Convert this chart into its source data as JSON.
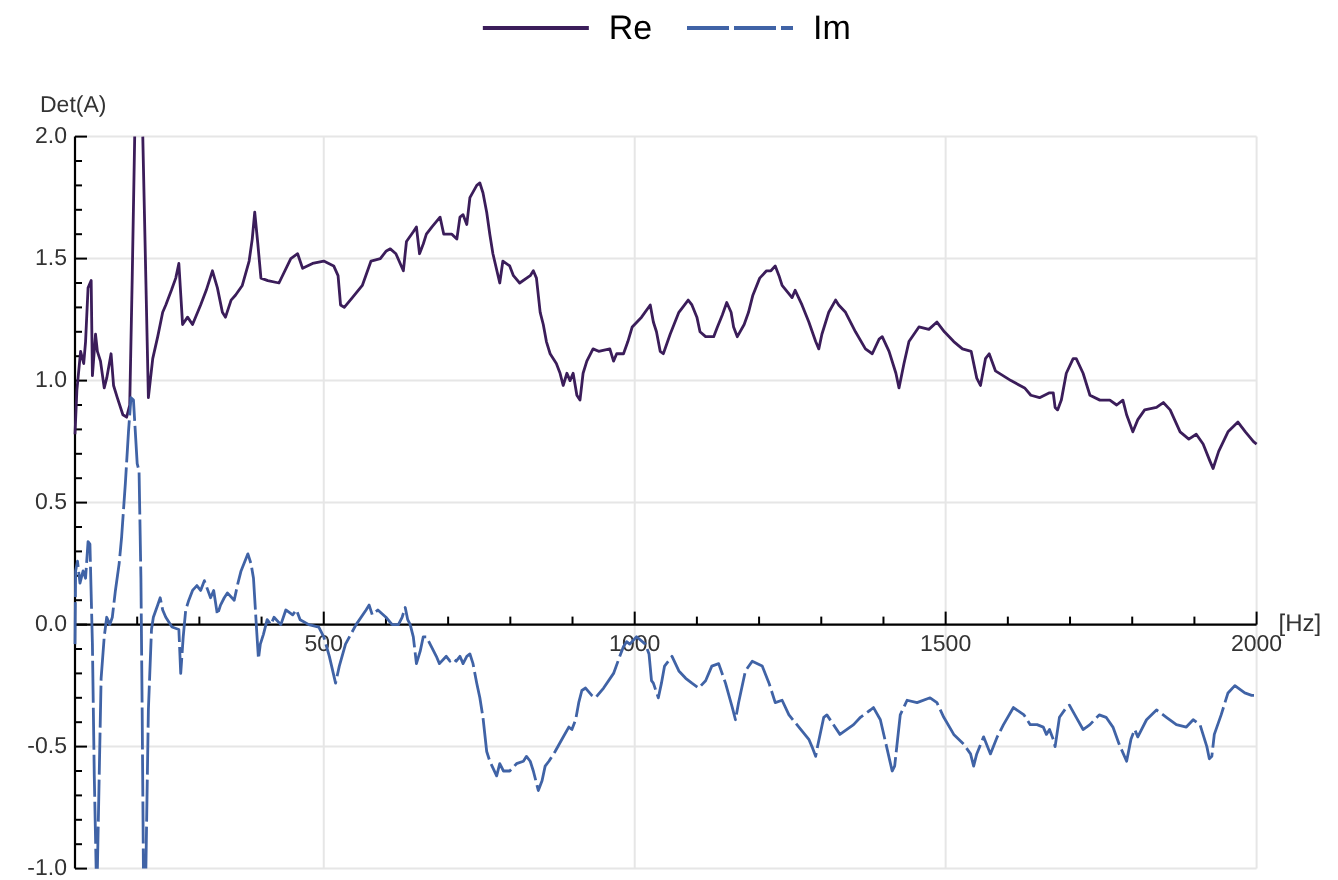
{
  "chart_data": {
    "type": "line",
    "xlabel": "[Hz]",
    "ylabel": "Det(A)",
    "xlim": [
      100,
      2000
    ],
    "ylim": [
      -1,
      2
    ],
    "xticks": [
      {
        "value": 200,
        "label": null
      },
      {
        "value": 300,
        "label": null
      },
      {
        "value": 400,
        "label": null
      },
      500,
      {
        "value": 600,
        "label": null
      },
      {
        "value": 700,
        "label": null
      },
      {
        "value": 800,
        "label": null
      },
      {
        "value": 900,
        "label": null
      },
      1000,
      {
        "value": 1100,
        "label": null
      },
      {
        "value": 1200,
        "label": null
      },
      {
        "value": 1300,
        "label": null
      },
      {
        "value": 1400,
        "label": null
      },
      1500,
      {
        "value": 1600,
        "label": null
      },
      {
        "value": 1700,
        "label": null
      },
      {
        "value": 1800,
        "label": null
      },
      {
        "value": 1900,
        "label": null
      },
      2000
    ],
    "yticks": [
      {
        "value": -1,
        "label": "-1.0"
      },
      {
        "value": -0.9,
        "label": null
      },
      {
        "value": -0.8,
        "label": null
      },
      {
        "value": -0.7,
        "label": null
      },
      {
        "value": -0.6,
        "label": null
      },
      {
        "value": -0.5,
        "label": "-0.5"
      },
      {
        "value": -0.4,
        "label": null
      },
      {
        "value": -0.3,
        "label": null
      },
      {
        "value": -0.2,
        "label": null
      },
      {
        "value": -0.1,
        "label": null
      },
      {
        "value": 0,
        "label": "0.0"
      },
      {
        "value": 0.1,
        "label": null
      },
      {
        "value": 0.2,
        "label": null
      },
      {
        "value": 0.3,
        "label": null
      },
      {
        "value": 0.4,
        "label": null
      },
      0.5,
      {
        "value": 0.6,
        "label": null
      },
      {
        "value": 0.7,
        "label": null
      },
      {
        "value": 0.8,
        "label": null
      },
      {
        "value": 0.9,
        "label": null
      },
      {
        "value": 1,
        "label": "1.0"
      },
      {
        "value": 1.1,
        "label": null
      },
      {
        "value": 1.2,
        "label": null
      },
      {
        "value": 1.3,
        "label": null
      },
      {
        "value": 1.4,
        "label": null
      },
      1.5,
      {
        "value": 1.6,
        "label": null
      },
      {
        "value": 1.7,
        "label": null
      },
      {
        "value": 1.8,
        "label": null
      },
      {
        "value": 1.9,
        "label": null
      },
      {
        "value": 2,
        "label": "2.0"
      }
    ],
    "grid": true,
    "legend": "top",
    "series": [
      {
        "name": "Re",
        "color": "#3b1d5a",
        "line_style": "solid",
        "x": [
          100,
          103,
          109,
          114,
          117,
          121,
          126,
          128,
          133,
          136,
          141,
          147,
          151,
          158,
          162,
          168,
          177,
          183,
          188,
          192,
          196,
          200,
          209,
          218,
          225,
          233,
          241,
          246,
          255,
          262,
          267,
          273,
          281,
          289,
          302,
          311,
          321,
          329,
          337,
          342,
          351,
          358,
          369,
          380,
          385,
          389,
          394,
          399,
          410,
          428,
          447,
          458,
          466,
          482,
          500,
          516,
          523,
          527,
          533,
          546,
          562,
          576,
          591,
          600,
          607,
          616,
          628,
          633,
          644,
          649,
          654,
          660,
          665,
          674,
          687,
          693,
          706,
          714,
          719,
          724,
          730,
          735,
          746,
          751,
          756,
          762,
          767,
          772,
          783,
          788,
          799,
          805,
          815,
          832,
          837,
          842,
          848,
          853,
          858,
          864,
          874,
          880,
          885,
          891,
          896,
          901,
          907,
          912,
          917,
          923,
          933,
          942,
          960,
          966,
          971,
          982,
          989,
          996,
          1011,
          1025,
          1030,
          1035,
          1041,
          1046,
          1057,
          1071,
          1086,
          1092,
          1100,
          1105,
          1114,
          1127,
          1133,
          1141,
          1148,
          1155,
          1159,
          1165,
          1176,
          1183,
          1190,
          1201,
          1212,
          1219,
          1226,
          1232,
          1237,
          1253,
          1258,
          1269,
          1280,
          1291,
          1296,
          1301,
          1312,
          1323,
          1328,
          1339,
          1355,
          1371,
          1382,
          1393,
          1398,
          1409,
          1420,
          1425,
          1433,
          1441,
          1457,
          1473,
          1486,
          1498,
          1513,
          1527,
          1541,
          1550,
          1556,
          1564,
          1570,
          1580,
          1605,
          1627,
          1637,
          1651,
          1667,
          1673,
          1676,
          1680,
          1686,
          1694,
          1705,
          1710,
          1721,
          1732,
          1748,
          1764,
          1775,
          1785,
          1791,
          1801,
          1809,
          1820,
          1839,
          1850,
          1861,
          1877,
          1891,
          1903,
          1914,
          1925,
          1930,
          1939,
          1954,
          1970,
          1982,
          1995,
          2000
        ],
        "values": [
          0.78,
          0.96,
          1.12,
          1.07,
          1.16,
          1.38,
          1.41,
          1.02,
          1.19,
          1.12,
          1.08,
          0.97,
          1.01,
          1.11,
          0.98,
          0.93,
          0.86,
          0.85,
          0.9,
          1.42,
          2.0,
          null,
          2.0,
          0.93,
          1.09,
          1.18,
          1.28,
          1.31,
          1.37,
          1.42,
          1.48,
          1.23,
          1.26,
          1.23,
          1.31,
          1.37,
          1.45,
          1.38,
          1.28,
          1.26,
          1.33,
          1.35,
          1.39,
          1.49,
          1.58,
          1.69,
          1.56,
          1.42,
          1.41,
          1.4,
          1.5,
          1.52,
          1.46,
          1.48,
          1.49,
          1.47,
          1.43,
          1.31,
          1.3,
          1.34,
          1.39,
          1.49,
          1.5,
          1.53,
          1.54,
          1.52,
          1.45,
          1.57,
          1.61,
          1.63,
          1.52,
          1.56,
          1.6,
          1.63,
          1.67,
          1.6,
          1.6,
          1.58,
          1.67,
          1.68,
          1.64,
          1.75,
          1.8,
          1.81,
          1.77,
          1.69,
          1.6,
          1.52,
          1.4,
          1.49,
          1.47,
          1.43,
          1.4,
          1.43,
          1.45,
          1.42,
          1.28,
          1.23,
          1.16,
          1.11,
          1.07,
          1.03,
          0.98,
          1.03,
          1.0,
          1.03,
          0.94,
          0.92,
          1.03,
          1.08,
          1.13,
          1.12,
          1.13,
          1.08,
          1.11,
          1.11,
          1.16,
          1.22,
          1.26,
          1.31,
          1.24,
          1.2,
          1.12,
          1.11,
          1.19,
          1.28,
          1.33,
          1.31,
          1.26,
          1.2,
          1.18,
          1.18,
          1.22,
          1.27,
          1.32,
          1.28,
          1.22,
          1.18,
          1.23,
          1.28,
          1.35,
          1.42,
          1.45,
          1.45,
          1.47,
          1.43,
          1.39,
          1.34,
          1.37,
          1.31,
          1.24,
          1.16,
          1.13,
          1.19,
          1.28,
          1.33,
          1.31,
          1.28,
          1.2,
          1.13,
          1.11,
          1.17,
          1.18,
          1.12,
          1.03,
          0.97,
          1.07,
          1.16,
          1.22,
          1.21,
          1.24,
          1.2,
          1.16,
          1.13,
          1.12,
          1.01,
          0.98,
          1.09,
          1.11,
          1.04,
          1.0,
          0.97,
          0.94,
          0.93,
          0.95,
          0.95,
          0.89,
          0.88,
          0.92,
          1.03,
          1.09,
          1.09,
          1.03,
          0.94,
          0.92,
          0.92,
          0.9,
          0.92,
          0.86,
          0.79,
          0.84,
          0.88,
          0.89,
          0.91,
          0.88,
          0.79,
          0.76,
          0.78,
          0.74,
          0.67,
          0.64,
          0.71,
          0.79,
          0.83,
          0.79,
          0.75,
          0.74
        ]
      },
      {
        "name": "Im",
        "color": "#4063a6",
        "line_style": "dashed",
        "x": [
          100,
          101,
          104,
          108,
          113,
          117,
          121,
          124,
          128,
          131,
          134,
          135,
          136,
          142,
          147,
          151,
          156,
          160,
          165,
          171,
          175,
          181,
          186,
          190,
          194,
          200,
          203,
          206,
          208,
          210,
          212,
          214,
          218,
          223,
          226,
          233,
          237,
          241,
          246,
          256,
          267,
          270,
          274,
          278,
          283,
          289,
          296,
          302,
          308,
          318,
          323,
          329,
          334,
          340,
          345,
          356,
          362,
          367,
          378,
          383,
          387,
          392,
          395,
          398,
          403,
          409,
          415,
          420,
          431,
          439,
          450,
          456,
          462,
          476,
          492,
          500,
          509,
          519,
          525,
          535,
          552,
          568,
          573,
          578,
          587,
          600,
          610,
          620,
          626,
          631,
          635,
          639,
          644,
          649,
          655,
          660,
          665,
          671,
          681,
          686,
          697,
          703,
          708,
          713,
          719,
          724,
          730,
          735,
          740,
          746,
          751,
          756,
          762,
          767,
          778,
          783,
          789,
          799,
          810,
          821,
          826,
          832,
          837,
          845,
          851,
          856,
          862,
          872,
          883,
          894,
          899,
          905,
          910,
          915,
          921,
          931,
          937,
          950,
          966,
          976,
          982,
          987,
          992,
          1003,
          1017,
          1023,
          1027,
          1030,
          1038,
          1043,
          1048,
          1060,
          1071,
          1082,
          1092,
          1103,
          1114,
          1124,
          1135,
          1146,
          1157,
          1162,
          1167,
          1178,
          1189,
          1205,
          1216,
          1226,
          1237,
          1248,
          1264,
          1280,
          1285,
          1291,
          1294,
          1304,
          1309,
          1330,
          1352,
          1363,
          1379,
          1384,
          1395,
          1405,
          1414,
          1418,
          1427,
          1438,
          1454,
          1475,
          1486,
          1497,
          1513,
          1529,
          1540,
          1545,
          1550,
          1561,
          1572,
          1583,
          1593,
          1609,
          1626,
          1636,
          1647,
          1657,
          1662,
          1667,
          1673,
          1676,
          1683,
          1694,
          1699,
          1710,
          1721,
          1732,
          1747,
          1758,
          1769,
          1779,
          1791,
          1798,
          1804,
          1809,
          1823,
          1839,
          1855,
          1871,
          1887,
          1898,
          1909,
          1920,
          1924,
          1928,
          1932,
          1943,
          1954,
          1965,
          1981,
          1992,
          2000
        ],
        "values": [
          -0.08,
          0.22,
          0.26,
          0.17,
          0.22,
          0.19,
          0.34,
          0.33,
          -0.08,
          -0.62,
          -1.0,
          null,
          -1.0,
          -0.22,
          -0.05,
          0.03,
          0.0,
          0.03,
          0.14,
          0.25,
          0.36,
          0.58,
          0.79,
          0.93,
          0.92,
          0.66,
          0.63,
          0.19,
          -0.35,
          -1.0,
          null,
          -1.0,
          -0.35,
          -0.02,
          0.03,
          0.08,
          0.11,
          0.06,
          0.03,
          -0.01,
          -0.02,
          -0.2,
          -0.05,
          0.06,
          0.1,
          0.14,
          0.16,
          0.14,
          0.18,
          0.11,
          0.14,
          0.04,
          0.08,
          0.11,
          0.13,
          0.1,
          0.17,
          0.22,
          0.29,
          0.25,
          0.19,
          -0.02,
          -0.14,
          -0.08,
          -0.04,
          0.02,
          0.0,
          0.03,
          0.0,
          0.06,
          0.04,
          0.06,
          0.02,
          0.0,
          -0.01,
          -0.05,
          -0.13,
          -0.24,
          -0.17,
          -0.08,
          0.0,
          0.06,
          0.08,
          0.04,
          0.06,
          0.03,
          0.0,
          0.0,
          0.03,
          0.07,
          0.02,
          0.0,
          -0.05,
          -0.16,
          -0.11,
          -0.05,
          -0.05,
          -0.08,
          -0.13,
          -0.16,
          -0.13,
          -0.15,
          -0.14,
          -0.15,
          -0.13,
          -0.16,
          -0.13,
          -0.12,
          -0.16,
          -0.24,
          -0.3,
          -0.38,
          -0.52,
          -0.56,
          -0.62,
          -0.57,
          -0.6,
          -0.6,
          -0.57,
          -0.56,
          -0.54,
          -0.56,
          -0.6,
          -0.68,
          -0.64,
          -0.58,
          -0.56,
          -0.52,
          -0.47,
          -0.42,
          -0.43,
          -0.39,
          -0.32,
          -0.27,
          -0.26,
          -0.29,
          -0.3,
          -0.26,
          -0.2,
          -0.13,
          -0.09,
          -0.07,
          -0.08,
          -0.05,
          -0.08,
          -0.12,
          -0.23,
          -0.24,
          -0.3,
          -0.24,
          -0.17,
          -0.13,
          -0.19,
          -0.22,
          -0.24,
          -0.26,
          -0.23,
          -0.17,
          -0.16,
          -0.24,
          -0.34,
          -0.39,
          -0.32,
          -0.19,
          -0.15,
          -0.17,
          -0.24,
          -0.32,
          -0.31,
          -0.37,
          -0.42,
          -0.47,
          -0.5,
          -0.54,
          -0.5,
          -0.38,
          -0.37,
          -0.45,
          -0.41,
          -0.38,
          -0.35,
          -0.34,
          -0.39,
          -0.5,
          -0.6,
          -0.58,
          -0.37,
          -0.31,
          -0.32,
          -0.3,
          -0.32,
          -0.38,
          -0.45,
          -0.49,
          -0.53,
          -0.58,
          -0.53,
          -0.46,
          -0.53,
          -0.46,
          -0.41,
          -0.34,
          -0.37,
          -0.41,
          -0.41,
          -0.42,
          -0.45,
          -0.43,
          -0.47,
          -0.5,
          -0.38,
          -0.34,
          -0.33,
          -0.38,
          -0.43,
          -0.41,
          -0.37,
          -0.38,
          -0.42,
          -0.49,
          -0.56,
          -0.47,
          -0.43,
          -0.46,
          -0.39,
          -0.35,
          -0.38,
          -0.41,
          -0.42,
          -0.39,
          -0.41,
          -0.5,
          -0.55,
          -0.54,
          -0.45,
          -0.37,
          -0.28,
          -0.25,
          -0.28,
          -0.29,
          -0.29
        ]
      }
    ]
  }
}
